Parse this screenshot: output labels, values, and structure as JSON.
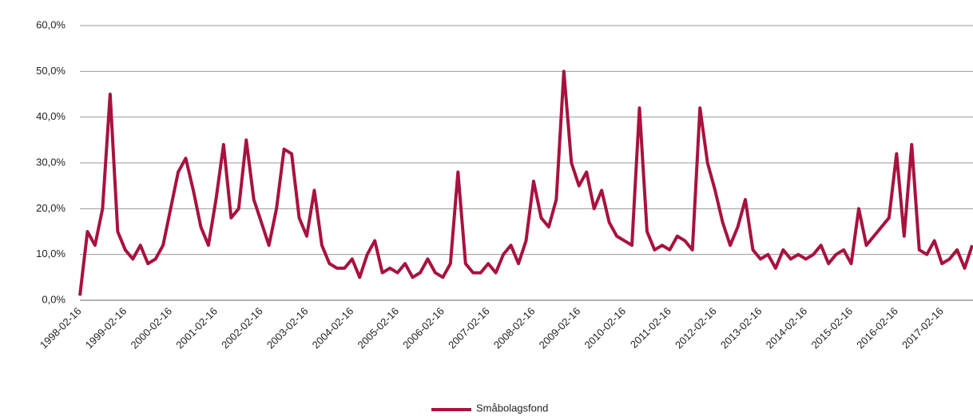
{
  "chart_data": {
    "type": "line",
    "categories": [
      "1998-02-16",
      null,
      null,
      null,
      null,
      null,
      "1999-02-16",
      null,
      null,
      null,
      null,
      null,
      "2000-02-16",
      null,
      null,
      null,
      null,
      null,
      "2001-02-16",
      null,
      null,
      null,
      null,
      null,
      "2002-02-16",
      null,
      null,
      null,
      null,
      null,
      "2003-02-16",
      null,
      null,
      null,
      null,
      null,
      "2004-02-16",
      null,
      null,
      null,
      null,
      null,
      "2005-02-16",
      null,
      null,
      null,
      null,
      null,
      "2006-02-16",
      null,
      null,
      null,
      null,
      null,
      "2007-02-16",
      null,
      null,
      null,
      null,
      null,
      "2008-02-16",
      null,
      null,
      null,
      null,
      null,
      "2009-02-16",
      null,
      null,
      null,
      null,
      null,
      "2010-02-16",
      null,
      null,
      null,
      null,
      null,
      "2011-02-16",
      null,
      null,
      null,
      null,
      null,
      "2012-02-16",
      null,
      null,
      null,
      null,
      null,
      "2013-02-16",
      null,
      null,
      null,
      null,
      null,
      "2014-02-16",
      null,
      null,
      null,
      null,
      null,
      "2015-02-16",
      null,
      null,
      null,
      null,
      null,
      "2016-02-16",
      null,
      null,
      null,
      null,
      null,
      "2017-02-16",
      null,
      null,
      null,
      null
    ],
    "series": [
      {
        "name": "Småbolagsfond",
        "color": "#a8123e",
        "values": [
          1,
          15,
          12,
          20,
          45,
          15,
          11,
          9,
          12,
          8,
          9,
          12,
          20,
          28,
          31,
          24,
          16,
          12,
          22,
          34,
          18,
          20,
          35,
          22,
          17,
          12,
          20,
          33,
          32,
          18,
          14,
          24,
          12,
          8,
          7,
          7,
          9,
          5,
          10,
          13,
          6,
          7,
          6,
          8,
          5,
          6,
          9,
          6,
          5,
          8,
          28,
          8,
          6,
          6,
          8,
          6,
          10,
          12,
          8,
          13,
          26,
          18,
          16,
          22,
          50,
          30,
          25,
          28,
          20,
          24,
          17,
          14,
          13,
          12,
          42,
          15,
          11,
          12,
          11,
          14,
          13,
          11,
          42,
          30,
          24,
          17,
          12,
          16,
          22,
          11,
          9,
          10,
          7,
          11,
          9,
          10,
          9,
          10,
          12,
          8,
          10,
          11,
          8,
          20,
          12,
          14,
          16,
          18,
          32,
          14,
          34,
          11,
          10,
          13,
          8,
          9,
          11,
          7,
          12
        ]
      }
    ],
    "ylim": [
      0,
      60
    ],
    "yticks": [
      {
        "value": 0,
        "label": "0,0%"
      },
      {
        "value": 10,
        "label": "10,0%"
      },
      {
        "value": 20,
        "label": "20,0%"
      },
      {
        "value": 30,
        "label": "30,0%"
      },
      {
        "value": 40,
        "label": "40,0%"
      },
      {
        "value": 50,
        "label": "50,0%"
      },
      {
        "value": 60,
        "label": "60,0%"
      }
    ],
    "grid": true,
    "legend": "bottom"
  }
}
